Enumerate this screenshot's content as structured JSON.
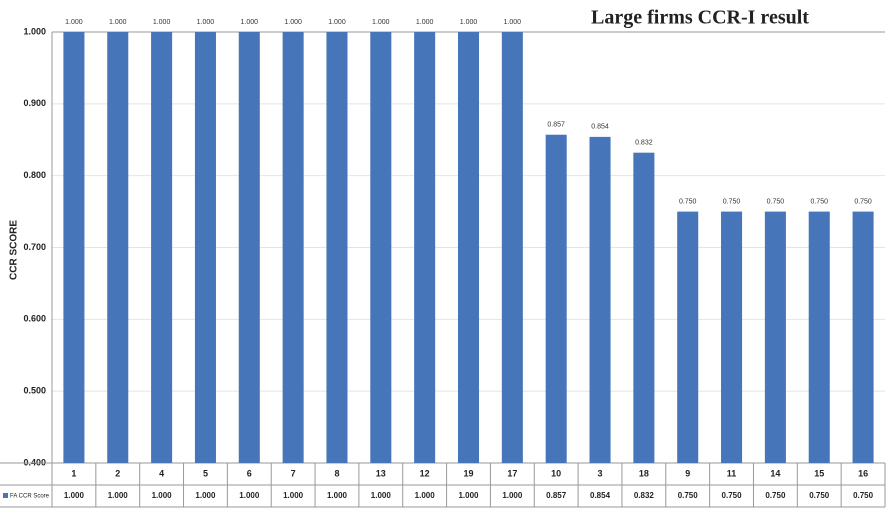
{
  "chart_data": {
    "type": "bar",
    "title": "Large firms CCR-I  result",
    "y_label": "CCR SCORE",
    "categories": [
      "1",
      "2",
      "4",
      "5",
      "6",
      "7",
      "8",
      "13",
      "12",
      "19",
      "17",
      "10",
      "3",
      "18",
      "9",
      "11",
      "14",
      "15",
      "16"
    ],
    "series": [
      {
        "name": "FA CCR Score",
        "color": "#4676b9",
        "values": [
          1,
          1,
          1,
          1,
          1,
          1,
          1,
          1,
          1,
          1,
          1,
          0.857,
          0.854,
          0.832,
          0.75,
          0.75,
          0.75,
          0.75,
          0.75
        ],
        "value_labels": [
          "1.000",
          "1.000",
          "1.000",
          "1.000",
          "1.000",
          "1.000",
          "1.000",
          "1.000",
          "1.000",
          "1.000",
          "1.000",
          "0.857",
          "0.854",
          "0.832",
          "0.750",
          "0.750",
          "0.750",
          "0.750",
          "0.750"
        ]
      }
    ],
    "ylim": [
      0.4,
      1.0
    ],
    "yticks": [
      {
        "value": 0.4,
        "label": "0.400"
      },
      {
        "value": 0.5,
        "label": "0.500"
      },
      {
        "value": 0.6,
        "label": "0.600"
      },
      {
        "value": 0.7,
        "label": "0.700"
      },
      {
        "value": 0.8,
        "label": "0.800"
      },
      {
        "value": 0.9,
        "label": "0.900"
      },
      {
        "value": 1.0,
        "label": "1.000"
      }
    ],
    "grid": true
  }
}
